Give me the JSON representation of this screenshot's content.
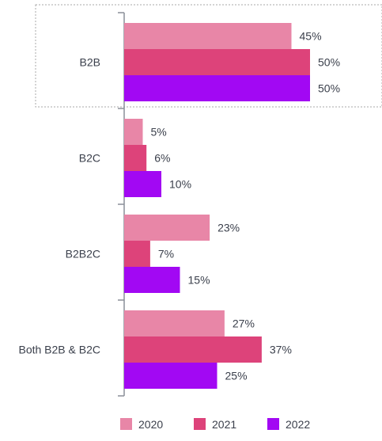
{
  "chart_data": {
    "type": "bar",
    "orientation": "horizontal",
    "categories": [
      "B2B",
      "B2C",
      "B2B2C",
      "Both B2B & B2C"
    ],
    "series": [
      {
        "name": "2020",
        "values": [
          45,
          5,
          23,
          27
        ],
        "color": "#e886a7"
      },
      {
        "name": "2021",
        "values": [
          50,
          6,
          7,
          37
        ],
        "color": "#dd437a"
      },
      {
        "name": "2022",
        "values": [
          50,
          10,
          15,
          25
        ],
        "color": "#a208f3"
      }
    ],
    "value_suffix": "%",
    "xlim": [
      0,
      100
    ],
    "grid": false,
    "legend": "bottom",
    "highlighted_category": "B2B"
  }
}
